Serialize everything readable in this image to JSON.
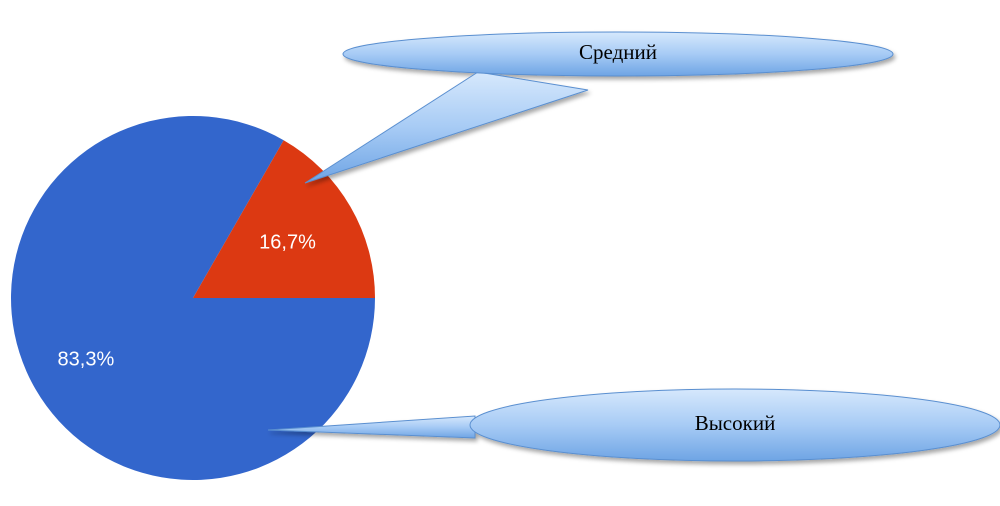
{
  "chart_data": {
    "type": "pie",
    "categories": [
      "Высокий",
      "Средний"
    ],
    "values": [
      83.3,
      16.7
    ],
    "value_labels": [
      "83,3%",
      "16,7%"
    ],
    "colors": [
      "#3366cc",
      "#dc3912"
    ]
  }
}
